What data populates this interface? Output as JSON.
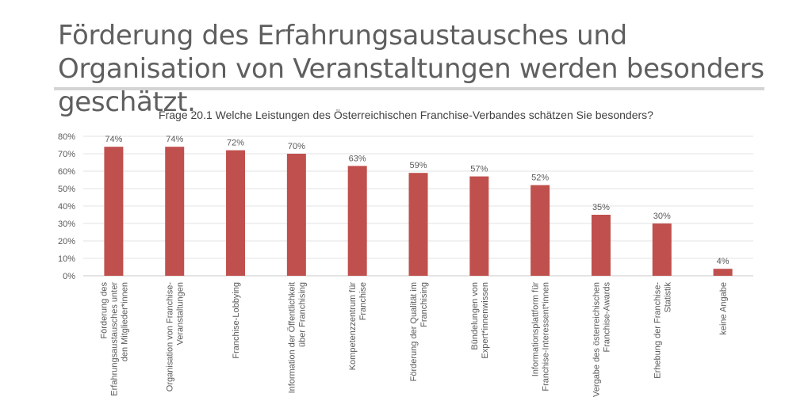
{
  "slide": {
    "title": "Förderung des Erfahrungsaustausches und Organisation von Veranstaltungen werden besonders geschätzt."
  },
  "colors": {
    "bar": "#c0504d",
    "grid": "#e3e3e3",
    "text": "#595959",
    "title_text": "#5f5f5f"
  },
  "chart_data": {
    "type": "bar",
    "title": "Frage 20.1 Welche Leistungen des Österreichischen Franchise-Verbandes schätzen Sie besonders?",
    "categories": [
      [
        "Förderung des",
        "Erfahrungsaustausches unter",
        "den Mitglieder*innen"
      ],
      [
        "Organisation von Franchise-",
        "Veranstaltungen"
      ],
      [
        "Franchise-Lobbying"
      ],
      [
        "Information der Öffentlichkeit",
        "über Franchising"
      ],
      [
        "Kompetenzzentrum für",
        "Franchise"
      ],
      [
        "Förderung der Qualität im",
        "Franchising"
      ],
      [
        "Bündelungen von",
        "Expert*innenwissen"
      ],
      [
        "Informationsplattform für",
        "Franchise-Interessent*innen"
      ],
      [
        "Vergabe des österreichischen",
        "Franchise-Awards"
      ],
      [
        "Erhebung der Franchise-",
        "Statistik"
      ],
      [
        "keine Angabe"
      ]
    ],
    "values": [
      74,
      74,
      72,
      70,
      63,
      59,
      57,
      52,
      35,
      30,
      4
    ],
    "data_labels": [
      "74%",
      "74%",
      "72%",
      "70%",
      "63%",
      "59%",
      "57%",
      "52%",
      "35%",
      "30%",
      "4%"
    ],
    "y_ticks": [
      "0%",
      "10%",
      "20%",
      "30%",
      "40%",
      "50%",
      "60%",
      "70%",
      "80%"
    ],
    "ylim": [
      0,
      80
    ],
    "xlabel": "",
    "ylabel": "",
    "grid": true,
    "legend": false
  }
}
